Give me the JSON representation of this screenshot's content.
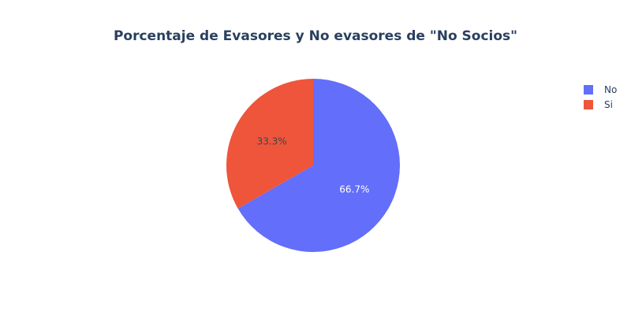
{
  "chart_data": {
    "type": "pie",
    "title": "Porcentaje de Evasores y No evasores de \"No Socios\"",
    "categories": [
      "No",
      "Si"
    ],
    "values": [
      66.7,
      33.3
    ],
    "labels": [
      "66.7%",
      "33.3%"
    ],
    "colors": [
      "#636efa",
      "#ef553b"
    ],
    "label_colors": [
      "#ffffff",
      "#444444"
    ],
    "direction": "clockwise",
    "start_angle": "top",
    "legend": {
      "placement": "top-right",
      "entries": [
        "No",
        "Si"
      ]
    }
  }
}
